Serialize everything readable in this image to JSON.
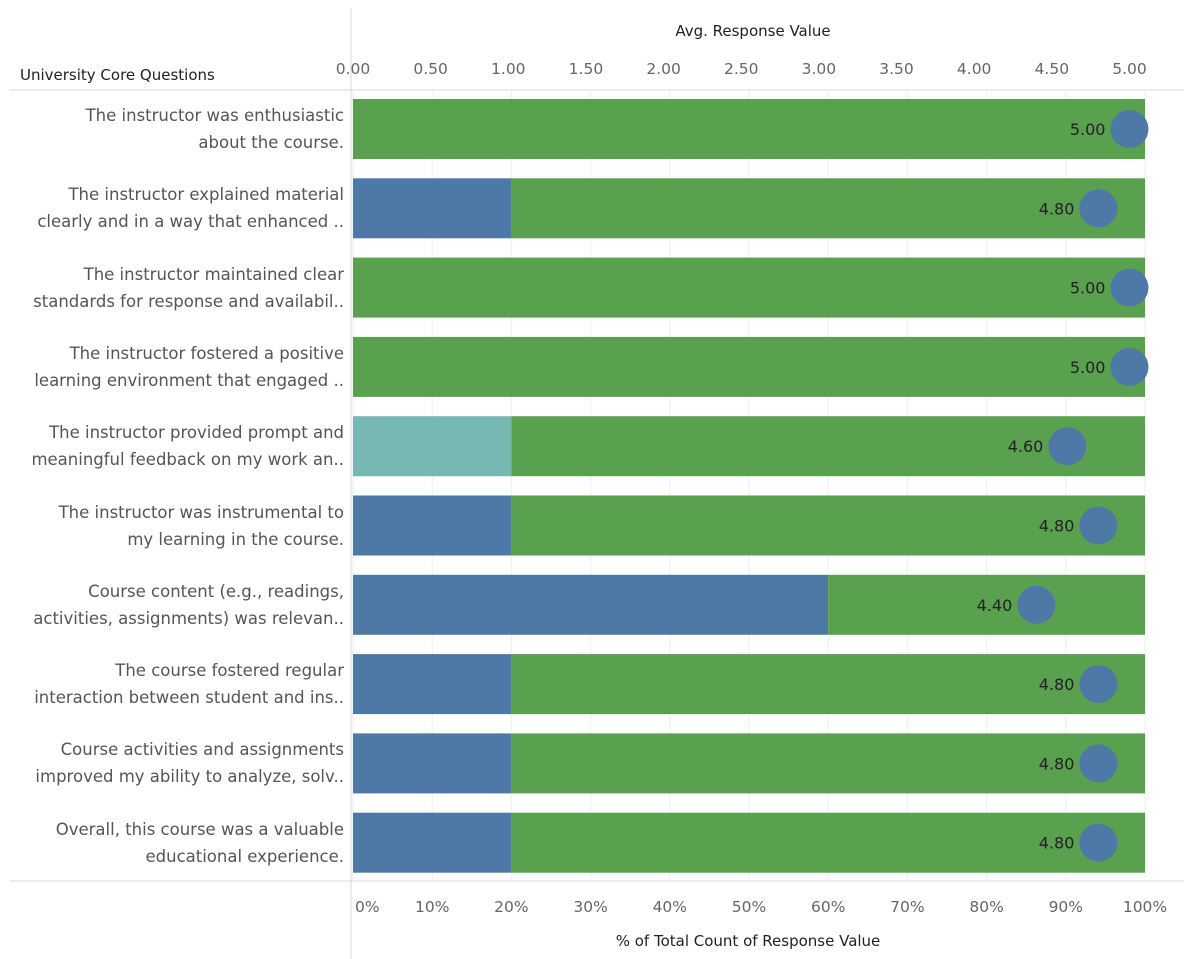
{
  "header": {
    "row_field_title": "University Core Questions"
  },
  "chart_data": {
    "type": "bar",
    "subtype": "stacked-horizontal-bar-with-dot",
    "categories": [
      "The instructor was enthusiastic about the course.",
      "The instructor explained material clearly and in a way that enhanced ..",
      "The instructor maintained clear standards for response and availabil..",
      "The instructor fostered a positive learning environment that engaged ..",
      "The instructor provided prompt and meaningful feedback on my work an..",
      "The instructor was instrumental to my learning in the course.",
      "Course content (e.g., readings, activities, assignments) was relevan..",
      "The course fostered regular interaction between student and ins..",
      "Course activities and assignments improved my ability to analyze, solv..",
      "Overall, this course was a valuable educational experience."
    ],
    "category_lines": [
      [
        "The instructor was enthusiastic",
        "about the course."
      ],
      [
        "The instructor explained material",
        "clearly and in a way that enhanced .."
      ],
      [
        "The instructor maintained clear",
        "standards for response and availabil.."
      ],
      [
        "The instructor fostered a positive",
        "learning environment that engaged .."
      ],
      [
        "The instructor provided prompt and",
        "meaningful feedback on my work an.."
      ],
      [
        "The instructor was instrumental to",
        "my learning in the course."
      ],
      [
        "Course content (e.g., readings,",
        "activities, assignments) was relevan.."
      ],
      [
        "The course fostered regular",
        "interaction between student and ins.."
      ],
      [
        "Course activities and assignments",
        "improved my ability to analyze, solv.."
      ],
      [
        "Overall, this course was a valuable",
        "educational experience."
      ]
    ],
    "segments": [
      [
        {
          "value": 100,
          "color": "#59a14f"
        }
      ],
      [
        {
          "value": 20,
          "color": "#4e79a7"
        },
        {
          "value": 80,
          "color": "#59a14f"
        }
      ],
      [
        {
          "value": 100,
          "color": "#59a14f"
        }
      ],
      [
        {
          "value": 100,
          "color": "#59a14f"
        }
      ],
      [
        {
          "value": 20,
          "color": "#76b7b2"
        },
        {
          "value": 80,
          "color": "#59a14f"
        }
      ],
      [
        {
          "value": 20,
          "color": "#4e79a7"
        },
        {
          "value": 80,
          "color": "#59a14f"
        }
      ],
      [
        {
          "value": 60,
          "color": "#4e79a7"
        },
        {
          "value": 40,
          "color": "#59a14f"
        }
      ],
      [
        {
          "value": 20,
          "color": "#4e79a7"
        },
        {
          "value": 80,
          "color": "#59a14f"
        }
      ],
      [
        {
          "value": 20,
          "color": "#4e79a7"
        },
        {
          "value": 80,
          "color": "#59a14f"
        }
      ],
      [
        {
          "value": 20,
          "color": "#4e79a7"
        },
        {
          "value": 80,
          "color": "#59a14f"
        }
      ]
    ],
    "avg_values": [
      5.0,
      4.8,
      5.0,
      5.0,
      4.6,
      4.8,
      4.4,
      4.8,
      4.8,
      4.8
    ],
    "avg_labels": [
      "5.00",
      "4.80",
      "5.00",
      "5.00",
      "4.60",
      "4.80",
      "4.40",
      "4.80",
      "4.80",
      "4.80"
    ],
    "dot_color": "#4e79a7",
    "top_axis": {
      "title": "Avg. Response Value",
      "range": [
        0,
        5.1
      ],
      "ticks": [
        0,
        0.5,
        1,
        1.5,
        2,
        2.5,
        3,
        3.5,
        4,
        4.5,
        5
      ],
      "tick_labels": [
        "0.00",
        "0.50",
        "1.00",
        "1.50",
        "2.00",
        "2.50",
        "3.00",
        "3.50",
        "4.00",
        "4.50",
        "5.00"
      ]
    },
    "bottom_axis": {
      "title": "% of Total Count of Response Value",
      "range": [
        0,
        100
      ],
      "ticks": [
        0,
        10,
        20,
        30,
        40,
        50,
        60,
        70,
        80,
        90,
        100
      ],
      "tick_labels": [
        "0%",
        "10%",
        "20%",
        "30%",
        "40%",
        "50%",
        "60%",
        "70%",
        "80%",
        "90%",
        "100%"
      ]
    },
    "grid": true
  }
}
